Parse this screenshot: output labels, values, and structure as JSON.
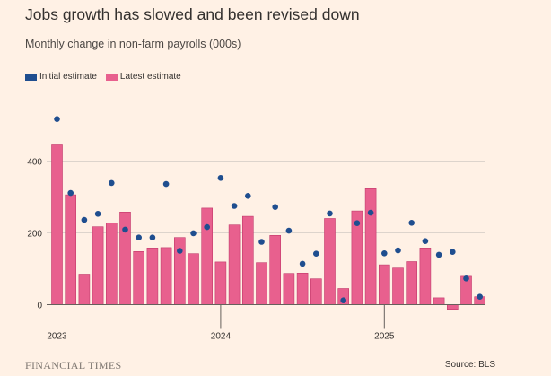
{
  "title": "Jobs growth has slowed and been revised down",
  "subtitle": "Monthly change in non-farm payrolls (000s)",
  "footer": {
    "brand": "FINANCIAL TIMES",
    "source": "Source: BLS"
  },
  "colors": {
    "initial": "#1f4e8f",
    "latest": "#e8608e",
    "grid": "#ddd4cc",
    "background": "#fff1e5"
  },
  "chart_data": {
    "type": "bar",
    "ylim": [
      -25,
      560
    ],
    "yticks": [
      0,
      200,
      400
    ],
    "grid": true,
    "legend_position": "top-left",
    "x_tick_labels": [
      "2023",
      "2024",
      "2025"
    ],
    "x_tick_months": [
      "2023-01",
      "2024-01",
      "2025-01"
    ],
    "months": [
      "2023-01",
      "2023-02",
      "2023-03",
      "2023-04",
      "2023-05",
      "2023-06",
      "2023-07",
      "2023-08",
      "2023-09",
      "2023-10",
      "2023-11",
      "2023-12",
      "2024-01",
      "2024-02",
      "2024-03",
      "2024-04",
      "2024-05",
      "2024-06",
      "2024-07",
      "2024-08",
      "2024-09",
      "2024-10",
      "2024-11",
      "2024-12",
      "2025-01",
      "2025-02",
      "2025-03",
      "2025-04",
      "2025-05",
      "2025-06",
      "2025-07",
      "2025-08"
    ],
    "series": [
      {
        "name": "Initial estimate",
        "kind": "dot",
        "values": [
          517,
          311,
          236,
          253,
          339,
          209,
          187,
          187,
          336,
          150,
          199,
          216,
          353,
          275,
          303,
          175,
          272,
          206,
          114,
          142,
          254,
          12,
          227,
          256,
          143,
          151,
          228,
          177,
          139,
          147,
          73,
          22
        ]
      },
      {
        "name": "Latest estimate",
        "kind": "bar",
        "values": [
          445,
          306,
          85,
          217,
          227,
          258,
          148,
          158,
          159,
          187,
          142,
          269,
          119,
          222,
          246,
          117,
          193,
          87,
          88,
          72,
          240,
          45,
          261,
          323,
          111,
          102,
          120,
          158,
          19,
          -13,
          79,
          22
        ]
      }
    ]
  }
}
